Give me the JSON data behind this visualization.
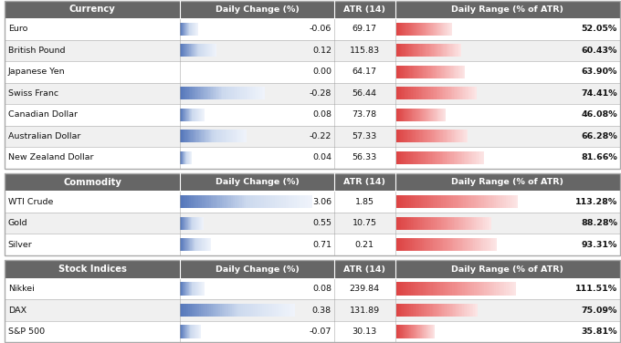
{
  "sections": [
    {
      "header": "Currency",
      "rows": [
        {
          "name": "Euro",
          "daily_change": -0.06,
          "atr": "69.17",
          "daily_range": 52.05
        },
        {
          "name": "British Pound",
          "daily_change": 0.12,
          "atr": "115.83",
          "daily_range": 60.43
        },
        {
          "name": "Japanese Yen",
          "daily_change": 0.0,
          "atr": "64.17",
          "daily_range": 63.9
        },
        {
          "name": "Swiss Franc",
          "daily_change": -0.28,
          "atr": "56.44",
          "daily_range": 74.41
        },
        {
          "name": "Canadian Dollar",
          "daily_change": 0.08,
          "atr": "73.78",
          "daily_range": 46.08
        },
        {
          "name": "Australian Dollar",
          "daily_change": -0.22,
          "atr": "57.33",
          "daily_range": 66.28
        },
        {
          "name": "New Zealand Dollar",
          "daily_change": 0.04,
          "atr": "56.33",
          "daily_range": 81.66
        }
      ],
      "dc_max": 0.5
    },
    {
      "header": "Commodity",
      "rows": [
        {
          "name": "WTI Crude",
          "daily_change": 3.06,
          "atr": "1.85",
          "daily_range": 113.28
        },
        {
          "name": "Gold",
          "daily_change": 0.55,
          "atr": "10.75",
          "daily_range": 88.28
        },
        {
          "name": "Silver",
          "daily_change": 0.71,
          "atr": "0.21",
          "daily_range": 93.31
        }
      ],
      "dc_max": 3.5
    },
    {
      "header": "Stock Indices",
      "rows": [
        {
          "name": "Nikkei",
          "daily_change": 0.08,
          "atr": "239.84",
          "daily_range": 111.51
        },
        {
          "name": "DAX",
          "daily_change": 0.38,
          "atr": "131.89",
          "daily_range": 75.09
        },
        {
          "name": "S&P 500",
          "daily_change": -0.07,
          "atr": "30.13",
          "daily_range": 35.81
        }
      ],
      "dc_max": 0.5
    }
  ],
  "col_headers": [
    "Daily Change (%)",
    "ATR (14)",
    "Daily Range (% of ATR)"
  ],
  "header_bg": "#666666",
  "header_fg": "#ffffff",
  "row_bg_even": "#ffffff",
  "row_bg_odd": "#f0f0f0",
  "border_color": "#aaaaaa",
  "bar_blue_colors": [
    "#5577bb",
    "#ccd9ee",
    "#f0f4fb"
  ],
  "bar_red_colors": [
    "#dd4444",
    "#f09090",
    "#fce8e8"
  ],
  "dr_max": 115.0,
  "figsize": [
    6.8,
    3.76
  ],
  "dpi": 100
}
